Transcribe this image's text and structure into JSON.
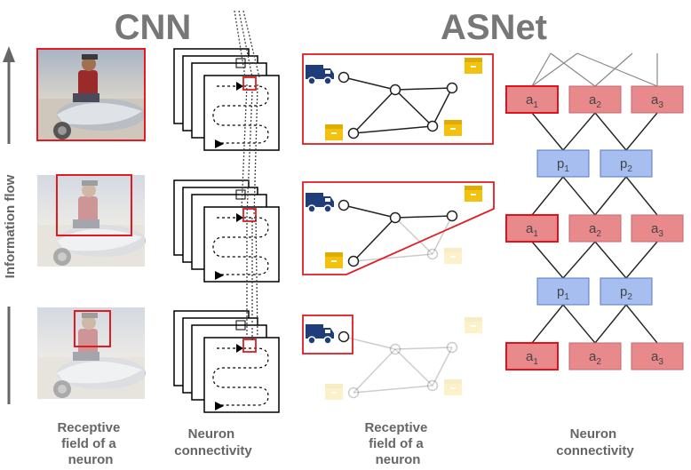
{
  "titles": {
    "cnn": "CNN",
    "asnet": "ASNet"
  },
  "side_label": "Information flow",
  "captions": {
    "cnn_receptive": [
      "Receptive",
      "field of a",
      "neuron"
    ],
    "cnn_connectivity": [
      "Neuron",
      "connectivity"
    ],
    "asnet_receptive": [
      "Receptive",
      "field of a",
      "neuron"
    ],
    "asnet_connectivity": [
      "Neuron",
      "connectivity"
    ]
  },
  "nodes": {
    "action": {
      "letter": "a",
      "subs": [
        "1",
        "2",
        "3"
      ]
    },
    "proposition": {
      "letter": "p",
      "subs": [
        "1",
        "2"
      ]
    }
  },
  "colors": {
    "action_fill": "#e8898c",
    "action_highlight": "#e4101c",
    "prop_fill": "#a6bff0",
    "prop_stroke": "#5a7ac0",
    "truck": "#1f3d7a",
    "box": "#f4c20d",
    "receptive_red": "#e21b23",
    "title_gray": "#777777"
  },
  "layers": {
    "action_layers": 3,
    "prop_layers": 2
  }
}
